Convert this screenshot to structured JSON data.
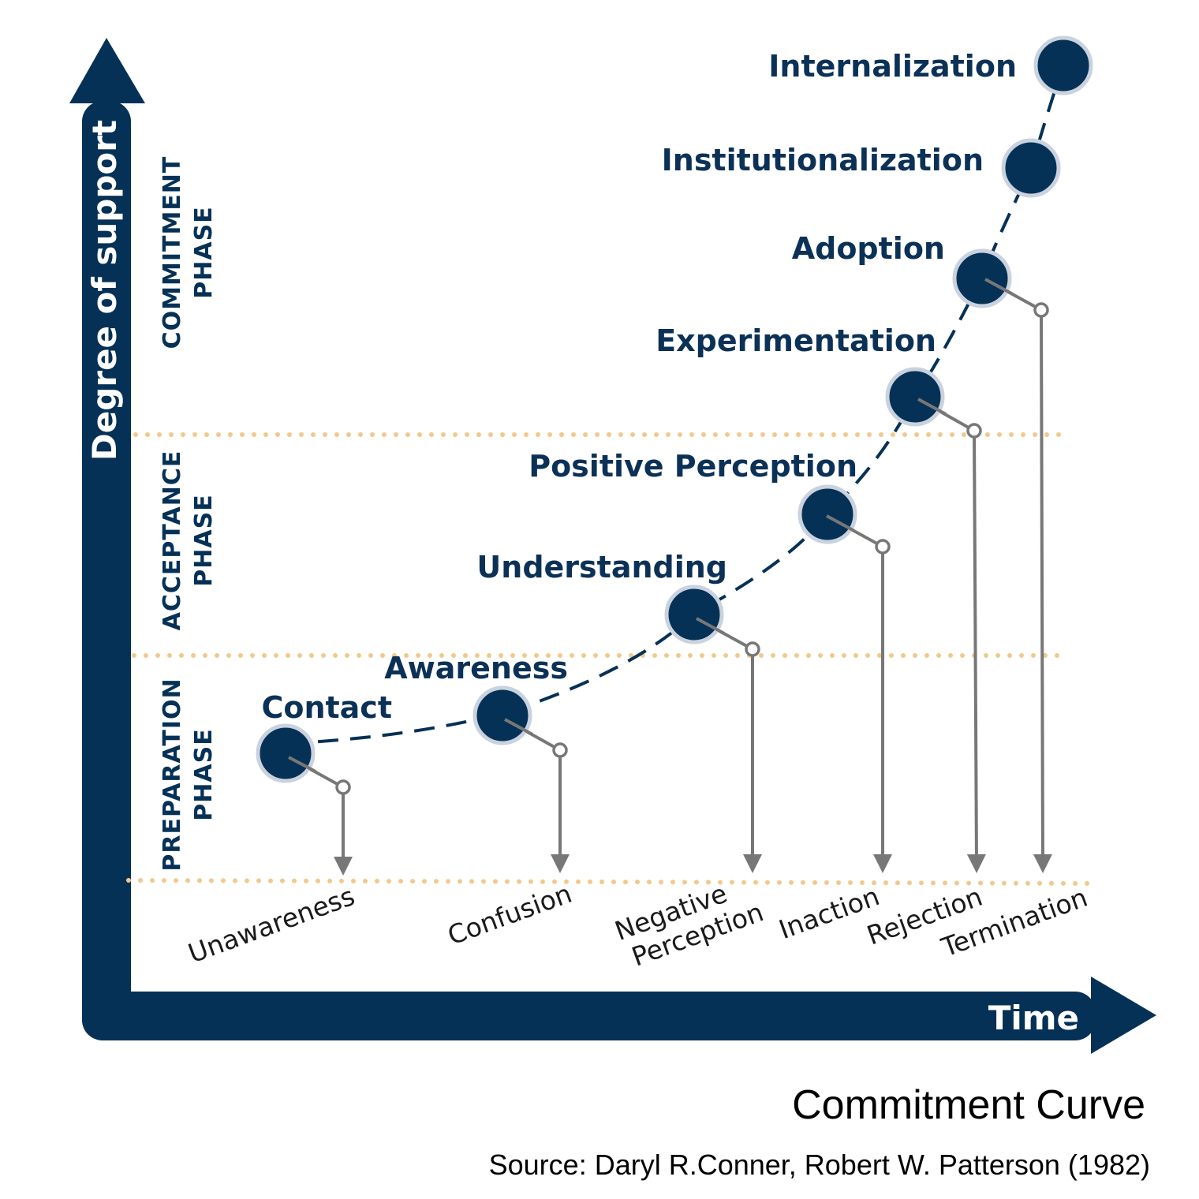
{
  "axes": {
    "y_label": "Degree of support",
    "x_label": "Time"
  },
  "phases": [
    {
      "line1": "COMMITMENT",
      "line2": "PHASE"
    },
    {
      "line1": "ACCEPTANCE",
      "line2": "PHASE"
    },
    {
      "line1": "PREPARATION",
      "line2": "PHASE"
    }
  ],
  "stages": [
    "Contact",
    "Awareness",
    "Understanding",
    "Positive Perception",
    "Experimentation",
    "Adoption",
    "Institutionalization",
    "Internalization"
  ],
  "outcomes": [
    {
      "line1": "Unawareness",
      "line2": ""
    },
    {
      "line1": "Confusion",
      "line2": ""
    },
    {
      "line1": "Negative",
      "line2": "Perception"
    },
    {
      "line1": "Inaction",
      "line2": ""
    },
    {
      "line1": "Rejection",
      "line2": ""
    },
    {
      "line1": "Termination",
      "line2": ""
    }
  ],
  "caption": {
    "title": "Commitment Curve",
    "source": "Source: Daryl R.Conner, Robert W. Patterson (1982)"
  },
  "colors": {
    "navy": "#063156",
    "node_ring": "#c9d2de",
    "connector_gray": "#777777",
    "dotted_divider": "#f2c98c"
  }
}
